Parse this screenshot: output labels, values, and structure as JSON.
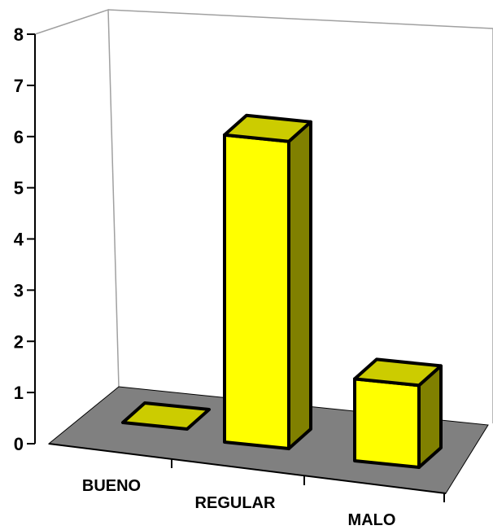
{
  "chart_data": {
    "type": "bar",
    "categories": [
      "BUENO",
      "REGULAR",
      "MALO"
    ],
    "values": [
      0,
      6,
      1.6
    ],
    "ylim": [
      0,
      8
    ],
    "yticks": [
      "0",
      "1",
      "2",
      "3",
      "4",
      "5",
      "6",
      "7",
      "8"
    ],
    "grid": false,
    "legend": "none",
    "colors": {
      "bar_front": "#ffff00",
      "bar_top": "#cccc00",
      "bar_side": "#808000",
      "floor": "#808080",
      "outline": "#000000",
      "wall_line": "#a0a0a0"
    }
  }
}
